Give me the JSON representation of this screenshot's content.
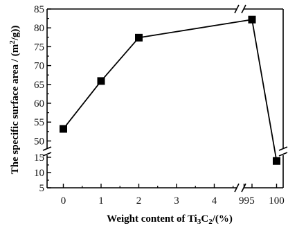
{
  "chart_data": {
    "type": "line",
    "xlabel_parts": {
      "prefix": "Weight content of Ti",
      "sub1": "3",
      "mid": "C",
      "sub2": "2",
      "suffix": "/(%)"
    },
    "ylabel_parts": {
      "prefix": "The specific surface area / (m",
      "sup": "2",
      "suffix": "/g))"
    },
    "x_axis": {
      "scale": "broken",
      "segments": [
        [
          0,
          5
        ],
        [
          99,
          100
        ]
      ],
      "ticks": [
        0,
        1,
        2,
        3,
        4,
        5,
        99,
        100
      ],
      "tick_labels": [
        "0",
        "1",
        "2",
        "3",
        "4",
        "5",
        "99",
        "100"
      ]
    },
    "y_axis": {
      "scale": "broken",
      "segments": [
        [
          5,
          15
        ],
        [
          50,
          85
        ]
      ],
      "ticks": [
        5,
        10,
        15,
        50,
        55,
        60,
        65,
        70,
        75,
        80,
        85
      ],
      "tick_labels": [
        "5",
        "10",
        "15",
        "50",
        "55",
        "60",
        "65",
        "70",
        "75",
        "80",
        "85"
      ]
    },
    "series": [
      {
        "marker": "square",
        "color": "#000000",
        "x": [
          0,
          1,
          2,
          5,
          100
        ],
        "y": [
          53.2,
          65.9,
          77.4,
          82.2,
          13.8
        ]
      }
    ],
    "grid": false,
    "legend": "none"
  }
}
